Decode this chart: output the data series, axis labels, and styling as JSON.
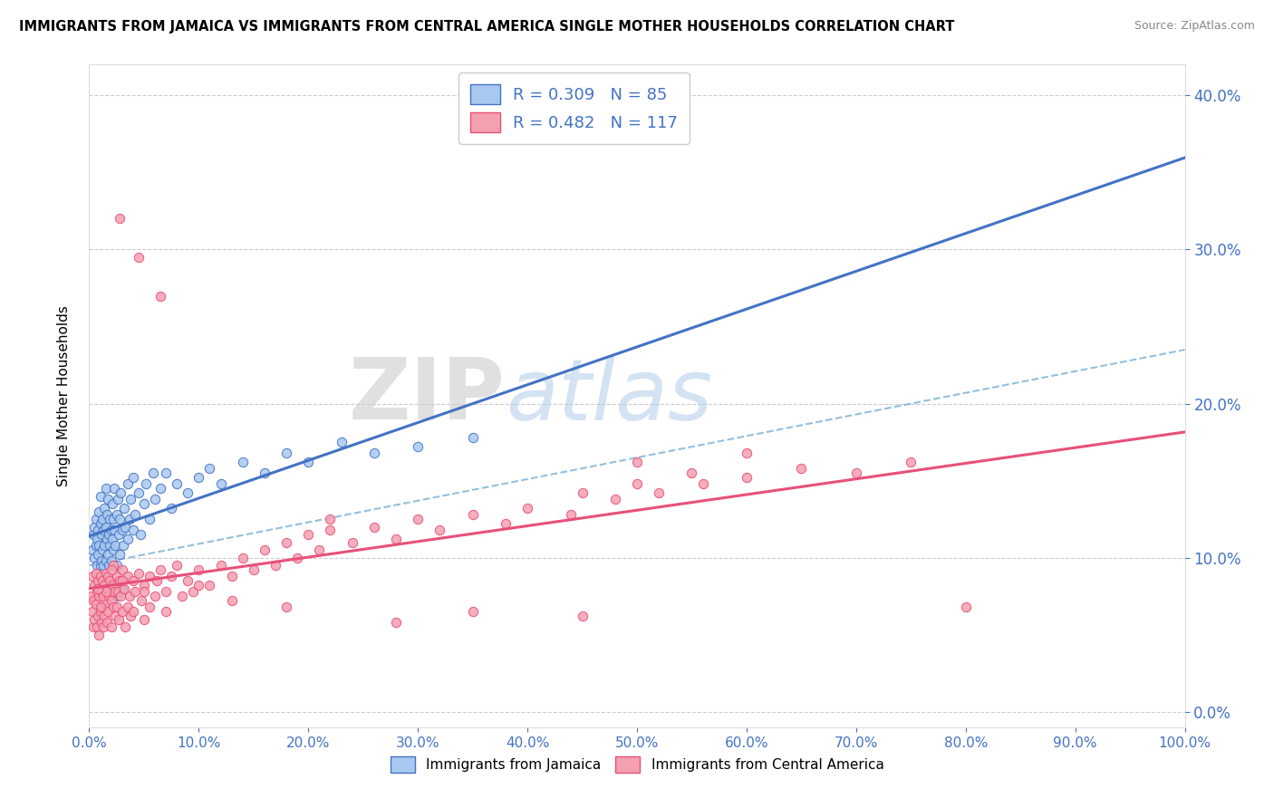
{
  "title": "IMMIGRANTS FROM JAMAICA VS IMMIGRANTS FROM CENTRAL AMERICA SINGLE MOTHER HOUSEHOLDS CORRELATION CHART",
  "source": "Source: ZipAtlas.com",
  "ylabel": "Single Mother Households",
  "xlim": [
    0.0,
    1.0
  ],
  "ylim": [
    -0.01,
    0.42
  ],
  "jamaica_color": "#A8C8F0",
  "jamaica_line_color": "#4472C4",
  "central_america_color": "#F4A0B0",
  "central_america_line_color": "#E8507A",
  "dashed_line_color": "#7BAFD4",
  "jamaica_R": 0.309,
  "jamaica_N": 85,
  "central_america_R": 0.482,
  "central_america_N": 117,
  "legend_label_jamaica": "Immigrants from Jamaica",
  "legend_label_central": "Immigrants from Central America",
  "watermark_zip": "ZIP",
  "watermark_atlas": "atlas",
  "jamaica_scatter": [
    [
      0.003,
      0.105
    ],
    [
      0.004,
      0.115
    ],
    [
      0.005,
      0.1
    ],
    [
      0.005,
      0.12
    ],
    [
      0.006,
      0.108
    ],
    [
      0.006,
      0.125
    ],
    [
      0.007,
      0.095
    ],
    [
      0.007,
      0.112
    ],
    [
      0.008,
      0.118
    ],
    [
      0.008,
      0.102
    ],
    [
      0.009,
      0.13
    ],
    [
      0.009,
      0.108
    ],
    [
      0.01,
      0.122
    ],
    [
      0.01,
      0.095
    ],
    [
      0.01,
      0.14
    ],
    [
      0.011,
      0.115
    ],
    [
      0.011,
      0.098
    ],
    [
      0.012,
      0.125
    ],
    [
      0.012,
      0.105
    ],
    [
      0.013,
      0.118
    ],
    [
      0.013,
      0.095
    ],
    [
      0.014,
      0.108
    ],
    [
      0.014,
      0.132
    ],
    [
      0.015,
      0.12
    ],
    [
      0.015,
      0.098
    ],
    [
      0.015,
      0.145
    ],
    [
      0.016,
      0.112
    ],
    [
      0.016,
      0.128
    ],
    [
      0.017,
      0.102
    ],
    [
      0.017,
      0.138
    ],
    [
      0.018,
      0.115
    ],
    [
      0.018,
      0.095
    ],
    [
      0.019,
      0.125
    ],
    [
      0.019,
      0.108
    ],
    [
      0.02,
      0.118
    ],
    [
      0.02,
      0.098
    ],
    [
      0.021,
      0.135
    ],
    [
      0.021,
      0.112
    ],
    [
      0.022,
      0.125
    ],
    [
      0.022,
      0.105
    ],
    [
      0.023,
      0.145
    ],
    [
      0.023,
      0.118
    ],
    [
      0.024,
      0.108
    ],
    [
      0.025,
      0.128
    ],
    [
      0.025,
      0.095
    ],
    [
      0.026,
      0.138
    ],
    [
      0.027,
      0.115
    ],
    [
      0.028,
      0.125
    ],
    [
      0.028,
      0.102
    ],
    [
      0.029,
      0.142
    ],
    [
      0.03,
      0.118
    ],
    [
      0.031,
      0.108
    ],
    [
      0.032,
      0.132
    ],
    [
      0.033,
      0.12
    ],
    [
      0.035,
      0.148
    ],
    [
      0.035,
      0.112
    ],
    [
      0.037,
      0.125
    ],
    [
      0.038,
      0.138
    ],
    [
      0.04,
      0.118
    ],
    [
      0.04,
      0.152
    ],
    [
      0.042,
      0.128
    ],
    [
      0.045,
      0.142
    ],
    [
      0.047,
      0.115
    ],
    [
      0.05,
      0.135
    ],
    [
      0.052,
      0.148
    ],
    [
      0.055,
      0.125
    ],
    [
      0.058,
      0.155
    ],
    [
      0.06,
      0.138
    ],
    [
      0.065,
      0.145
    ],
    [
      0.07,
      0.155
    ],
    [
      0.075,
      0.132
    ],
    [
      0.08,
      0.148
    ],
    [
      0.09,
      0.142
    ],
    [
      0.1,
      0.152
    ],
    [
      0.11,
      0.158
    ],
    [
      0.12,
      0.148
    ],
    [
      0.14,
      0.162
    ],
    [
      0.16,
      0.155
    ],
    [
      0.18,
      0.168
    ],
    [
      0.2,
      0.162
    ],
    [
      0.23,
      0.175
    ],
    [
      0.26,
      0.168
    ],
    [
      0.3,
      0.172
    ],
    [
      0.35,
      0.178
    ],
    [
      0.03,
      0.08
    ],
    [
      0.025,
      0.075
    ]
  ],
  "central_scatter": [
    [
      0.002,
      0.075
    ],
    [
      0.003,
      0.065
    ],
    [
      0.003,
      0.088
    ],
    [
      0.004,
      0.072
    ],
    [
      0.004,
      0.055
    ],
    [
      0.005,
      0.082
    ],
    [
      0.005,
      0.06
    ],
    [
      0.006,
      0.09
    ],
    [
      0.006,
      0.07
    ],
    [
      0.007,
      0.078
    ],
    [
      0.007,
      0.055
    ],
    [
      0.008,
      0.085
    ],
    [
      0.008,
      0.062
    ],
    [
      0.009,
      0.075
    ],
    [
      0.009,
      0.05
    ],
    [
      0.01,
      0.088
    ],
    [
      0.01,
      0.065
    ],
    [
      0.011,
      0.078
    ],
    [
      0.011,
      0.058
    ],
    [
      0.012,
      0.085
    ],
    [
      0.012,
      0.068
    ],
    [
      0.013,
      0.075
    ],
    [
      0.013,
      0.055
    ],
    [
      0.014,
      0.082
    ],
    [
      0.014,
      0.062
    ],
    [
      0.015,
      0.09
    ],
    [
      0.015,
      0.07
    ],
    [
      0.016,
      0.08
    ],
    [
      0.016,
      0.058
    ],
    [
      0.017,
      0.088
    ],
    [
      0.017,
      0.065
    ],
    [
      0.018,
      0.075
    ],
    [
      0.019,
      0.085
    ],
    [
      0.02,
      0.072
    ],
    [
      0.02,
      0.055
    ],
    [
      0.021,
      0.082
    ],
    [
      0.022,
      0.068
    ],
    [
      0.022,
      0.095
    ],
    [
      0.023,
      0.078
    ],
    [
      0.024,
      0.062
    ],
    [
      0.025,
      0.088
    ],
    [
      0.025,
      0.068
    ],
    [
      0.026,
      0.078
    ],
    [
      0.027,
      0.06
    ],
    [
      0.028,
      0.085
    ],
    [
      0.028,
      0.32
    ],
    [
      0.029,
      0.075
    ],
    [
      0.03,
      0.092
    ],
    [
      0.03,
      0.065
    ],
    [
      0.032,
      0.08
    ],
    [
      0.033,
      0.055
    ],
    [
      0.035,
      0.088
    ],
    [
      0.035,
      0.068
    ],
    [
      0.037,
      0.075
    ],
    [
      0.038,
      0.062
    ],
    [
      0.04,
      0.085
    ],
    [
      0.04,
      0.065
    ],
    [
      0.042,
      0.078
    ],
    [
      0.045,
      0.09
    ],
    [
      0.045,
      0.295
    ],
    [
      0.048,
      0.072
    ],
    [
      0.05,
      0.082
    ],
    [
      0.05,
      0.06
    ],
    [
      0.055,
      0.088
    ],
    [
      0.055,
      0.068
    ],
    [
      0.06,
      0.075
    ],
    [
      0.062,
      0.085
    ],
    [
      0.065,
      0.27
    ],
    [
      0.065,
      0.092
    ],
    [
      0.07,
      0.078
    ],
    [
      0.075,
      0.088
    ],
    [
      0.08,
      0.095
    ],
    [
      0.085,
      0.075
    ],
    [
      0.09,
      0.085
    ],
    [
      0.095,
      0.078
    ],
    [
      0.1,
      0.092
    ],
    [
      0.11,
      0.082
    ],
    [
      0.12,
      0.095
    ],
    [
      0.13,
      0.088
    ],
    [
      0.14,
      0.1
    ],
    [
      0.15,
      0.092
    ],
    [
      0.16,
      0.105
    ],
    [
      0.17,
      0.095
    ],
    [
      0.18,
      0.11
    ],
    [
      0.19,
      0.1
    ],
    [
      0.2,
      0.115
    ],
    [
      0.21,
      0.105
    ],
    [
      0.22,
      0.118
    ],
    [
      0.24,
      0.11
    ],
    [
      0.26,
      0.12
    ],
    [
      0.28,
      0.112
    ],
    [
      0.3,
      0.125
    ],
    [
      0.32,
      0.118
    ],
    [
      0.35,
      0.128
    ],
    [
      0.38,
      0.122
    ],
    [
      0.4,
      0.132
    ],
    [
      0.44,
      0.128
    ],
    [
      0.48,
      0.138
    ],
    [
      0.52,
      0.142
    ],
    [
      0.56,
      0.148
    ],
    [
      0.6,
      0.152
    ],
    [
      0.65,
      0.158
    ],
    [
      0.7,
      0.155
    ],
    [
      0.75,
      0.162
    ],
    [
      0.8,
      0.068
    ],
    [
      0.35,
      0.065
    ],
    [
      0.45,
      0.062
    ],
    [
      0.5,
      0.162
    ],
    [
      0.28,
      0.058
    ],
    [
      0.22,
      0.125
    ],
    [
      0.18,
      0.068
    ],
    [
      0.13,
      0.072
    ],
    [
      0.1,
      0.082
    ],
    [
      0.07,
      0.065
    ],
    [
      0.05,
      0.078
    ],
    [
      0.03,
      0.085
    ],
    [
      0.02,
      0.092
    ],
    [
      0.015,
      0.078
    ],
    [
      0.01,
      0.068
    ],
    [
      0.008,
      0.08
    ],
    [
      0.6,
      0.168
    ],
    [
      0.55,
      0.155
    ],
    [
      0.5,
      0.148
    ],
    [
      0.45,
      0.142
    ]
  ]
}
